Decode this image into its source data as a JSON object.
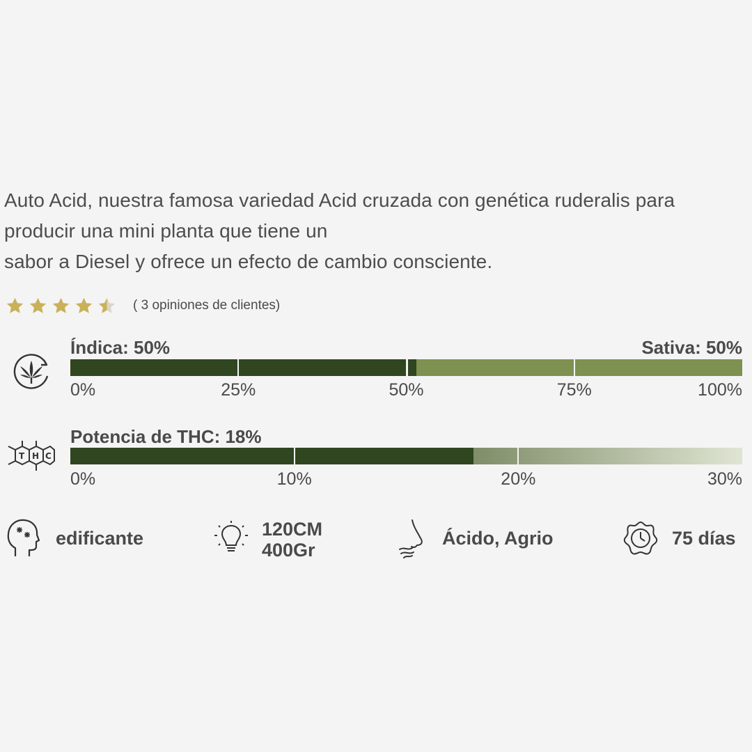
{
  "description": {
    "line1": "Auto Acid, nuestra famosa variedad Acid cruzada con genética ruderalis para",
    "line2": "producir una mini planta que tiene un",
    "line3": "sabor a Diesel y ofrece un efecto de cambio consciente."
  },
  "rating": {
    "value": 4.5,
    "max": 5,
    "text": "( 3 opiniones de clientes)",
    "color": "#c9b15a"
  },
  "genetics": {
    "icon": "cannabis-leaf-cycle-icon",
    "left_label": "Índica: 50%",
    "right_label": "Sativa: 50%",
    "indica_fraction": 0.5,
    "scale": [
      "0%",
      "25%",
      "50%",
      "75%",
      "100%"
    ],
    "colors": {
      "indica": "#2f4620",
      "sativa": "#7f9150"
    }
  },
  "thc": {
    "icon": "thc-molecule-icon",
    "label": "Potencia de THC: 18%",
    "value_percent": 18,
    "max_percent": 30,
    "scale": [
      "0%",
      "10%",
      "20%",
      "30%"
    ],
    "colors": {
      "fill": "#2f4620",
      "gradient_start": "#7f8d68",
      "gradient_end": "#dfe5d3"
    }
  },
  "features": [
    {
      "icon": "head-effect-icon",
      "text": "edificante"
    },
    {
      "icon": "light-bulb-icon",
      "lines": [
        "120CM",
        "400Gr"
      ]
    },
    {
      "icon": "nose-smell-icon",
      "text": "Ácido, Agrio"
    },
    {
      "icon": "flowering-time-icon",
      "text": "75 días"
    }
  ]
}
